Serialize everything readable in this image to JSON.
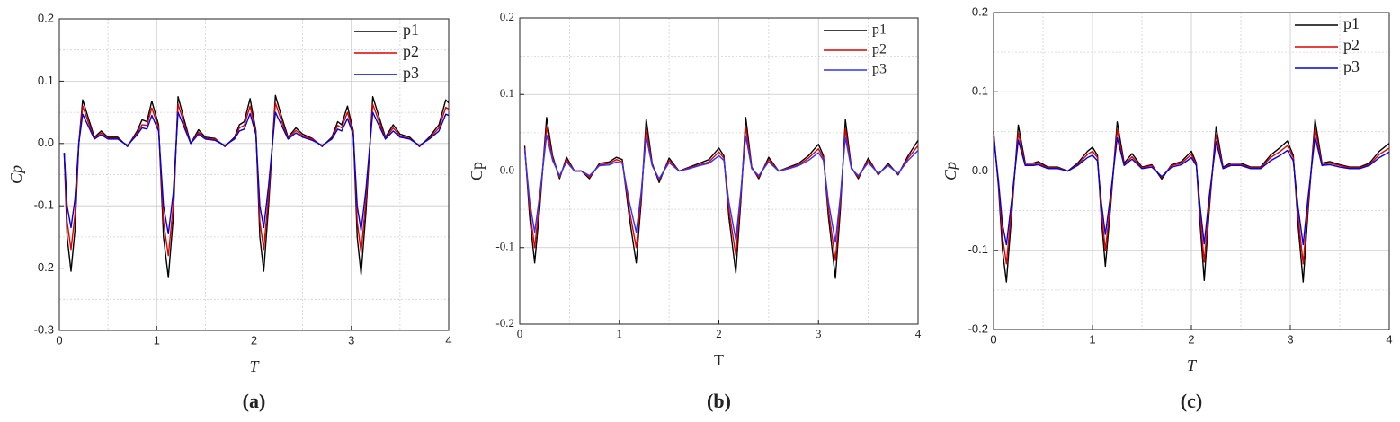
{
  "chart_data": [
    {
      "type": "line",
      "caption": "(a)",
      "xlabel": "T",
      "ylabel": "Cp",
      "italic_labels": true,
      "font": "sans-serif",
      "xlim": [
        0,
        4
      ],
      "xticks": [
        0,
        1,
        2,
        3,
        4
      ],
      "ylim": [
        -0.3,
        0.2
      ],
      "yticks": [
        -0.3,
        -0.2,
        -0.1,
        {
          "value": 0,
          "label": "0.0"
        },
        0.1,
        0.2
      ],
      "grid": true,
      "minor_grid": true,
      "legend": "upper right",
      "x": [
        0.05,
        0.08,
        0.12,
        0.16,
        0.2,
        0.24,
        0.3,
        0.36,
        0.43,
        0.5,
        0.6,
        0.7,
        0.8,
        0.85,
        0.9,
        0.95,
        1.02,
        1.07,
        1.12,
        1.17,
        1.22,
        1.28,
        1.35,
        1.43,
        1.5,
        1.6,
        1.7,
        1.8,
        1.85,
        1.9,
        1.96,
        2.02,
        2.06,
        2.1,
        2.15,
        2.22,
        2.28,
        2.35,
        2.43,
        2.5,
        2.6,
        2.7,
        2.8,
        2.86,
        2.9,
        2.96,
        3.02,
        3.06,
        3.1,
        3.15,
        3.22,
        3.28,
        3.35,
        3.43,
        3.5,
        3.6,
        3.7,
        3.8,
        3.9,
        3.97,
        4.0
      ],
      "series": [
        {
          "name": "p1",
          "color": "#000000",
          "values": [
            -0.015,
            -0.15,
            -0.205,
            -0.14,
            0.0,
            0.07,
            0.04,
            0.01,
            0.02,
            0.01,
            0.01,
            -0.005,
            0.02,
            0.038,
            0.035,
            0.068,
            0.03,
            -0.15,
            -0.215,
            -0.12,
            0.075,
            0.04,
            0.0,
            0.022,
            0.01,
            0.008,
            -0.005,
            0.01,
            0.03,
            0.035,
            0.072,
            0.02,
            -0.15,
            -0.205,
            -0.1,
            0.077,
            0.045,
            0.01,
            0.025,
            0.015,
            0.008,
            -0.005,
            0.01,
            0.035,
            0.03,
            0.06,
            0.02,
            -0.15,
            -0.21,
            -0.11,
            0.075,
            0.045,
            0.01,
            0.03,
            0.015,
            0.01,
            -0.005,
            0.01,
            0.03,
            0.07,
            0.065
          ]
        },
        {
          "name": "p2",
          "color": "#e00000",
          "values": [
            -0.015,
            -0.125,
            -0.17,
            -0.115,
            0.0,
            0.06,
            0.033,
            0.008,
            0.017,
            0.008,
            0.008,
            -0.004,
            0.017,
            0.03,
            0.029,
            0.057,
            0.025,
            -0.125,
            -0.18,
            -0.1,
            0.063,
            0.033,
            0.0,
            0.018,
            0.008,
            0.007,
            -0.004,
            0.008,
            0.025,
            0.029,
            0.06,
            0.017,
            -0.125,
            -0.17,
            -0.083,
            0.065,
            0.037,
            0.008,
            0.021,
            0.012,
            0.007,
            -0.004,
            0.008,
            0.029,
            0.025,
            0.05,
            0.017,
            -0.125,
            -0.175,
            -0.091,
            0.063,
            0.037,
            0.008,
            0.025,
            0.012,
            0.008,
            -0.004,
            0.008,
            0.025,
            0.058,
            0.055
          ]
        },
        {
          "name": "p3",
          "color": "#0000e0",
          "values": [
            -0.015,
            -0.1,
            -0.135,
            -0.09,
            0.0,
            0.047,
            0.027,
            0.007,
            0.014,
            0.007,
            0.007,
            -0.003,
            0.014,
            0.025,
            0.023,
            0.045,
            0.02,
            -0.1,
            -0.145,
            -0.08,
            0.05,
            0.027,
            0.0,
            0.015,
            0.007,
            0.005,
            -0.003,
            0.007,
            0.02,
            0.023,
            0.048,
            0.014,
            -0.1,
            -0.135,
            -0.067,
            0.05,
            0.03,
            0.007,
            0.017,
            0.01,
            0.005,
            -0.003,
            0.007,
            0.023,
            0.02,
            0.04,
            0.014,
            -0.1,
            -0.14,
            -0.074,
            0.05,
            0.03,
            0.007,
            0.02,
            0.01,
            0.007,
            -0.003,
            0.007,
            0.02,
            0.047,
            0.045
          ]
        }
      ]
    },
    {
      "type": "line",
      "caption": "(b)",
      "xlabel": "T",
      "ylabel": "Cp",
      "italic_labels": false,
      "font": "serif",
      "xlim": [
        0,
        4
      ],
      "xticks": [
        0,
        1,
        2,
        3,
        4
      ],
      "ylim": [
        -0.2,
        0.2
      ],
      "yticks": [
        -0.2,
        -0.1,
        {
          "value": 0,
          "label": "0.0"
        },
        0.1,
        0.2
      ],
      "grid": true,
      "minor_grid": true,
      "legend": "upper right",
      "x": [
        0.05,
        0.1,
        0.15,
        0.2,
        0.27,
        0.33,
        0.4,
        0.47,
        0.55,
        0.62,
        0.7,
        0.8,
        0.9,
        0.97,
        1.03,
        1.1,
        1.17,
        1.22,
        1.27,
        1.33,
        1.4,
        1.5,
        1.6,
        1.7,
        1.8,
        1.9,
        2.0,
        2.05,
        2.1,
        2.17,
        2.22,
        2.27,
        2.33,
        2.4,
        2.5,
        2.6,
        2.7,
        2.8,
        2.9,
        3.0,
        3.05,
        3.1,
        3.17,
        3.22,
        3.27,
        3.33,
        3.4,
        3.5,
        3.6,
        3.7,
        3.8,
        3.9,
        4.0
      ],
      "series": [
        {
          "name": "p1",
          "color": "#000000",
          "values": [
            0.033,
            -0.06,
            -0.12,
            -0.05,
            0.07,
            0.02,
            -0.01,
            0.018,
            0.0,
            0.0,
            -0.01,
            0.01,
            0.012,
            0.018,
            0.015,
            -0.06,
            -0.12,
            -0.04,
            0.068,
            0.01,
            -0.015,
            0.017,
            0.0,
            0.005,
            0.01,
            0.015,
            0.03,
            0.02,
            -0.06,
            -0.133,
            -0.04,
            0.07,
            0.005,
            -0.01,
            0.018,
            0.0,
            0.005,
            0.01,
            0.02,
            0.035,
            0.02,
            -0.06,
            -0.14,
            -0.05,
            0.067,
            0.005,
            -0.01,
            0.017,
            -0.005,
            0.01,
            -0.005,
            0.02,
            0.04
          ]
        },
        {
          "name": "p2",
          "color": "#e00000",
          "values": [
            0.03,
            -0.05,
            -0.1,
            -0.04,
            0.058,
            0.017,
            -0.008,
            0.015,
            0.0,
            0.0,
            -0.008,
            0.008,
            0.01,
            0.015,
            0.012,
            -0.05,
            -0.1,
            -0.033,
            0.056,
            0.008,
            -0.012,
            0.014,
            0.0,
            0.004,
            0.008,
            0.012,
            0.025,
            0.017,
            -0.05,
            -0.11,
            -0.033,
            0.058,
            0.004,
            -0.008,
            0.015,
            0.0,
            0.004,
            0.008,
            0.017,
            0.029,
            0.017,
            -0.05,
            -0.117,
            -0.04,
            0.055,
            0.004,
            -0.008,
            0.014,
            -0.004,
            0.008,
            -0.004,
            0.017,
            0.033
          ]
        },
        {
          "name": "p3",
          "color": "#3030ff",
          "values": [
            0.028,
            -0.04,
            -0.08,
            -0.032,
            0.047,
            0.014,
            -0.006,
            0.012,
            0.0,
            0.0,
            -0.006,
            0.007,
            0.008,
            0.012,
            0.01,
            -0.04,
            -0.08,
            -0.027,
            0.045,
            0.007,
            -0.01,
            0.011,
            0.0,
            0.003,
            0.007,
            0.01,
            0.02,
            0.014,
            -0.04,
            -0.09,
            -0.027,
            0.046,
            0.003,
            -0.006,
            0.012,
            0.0,
            0.003,
            0.007,
            0.014,
            0.024,
            0.014,
            -0.04,
            -0.093,
            -0.032,
            0.044,
            0.003,
            -0.006,
            0.011,
            -0.003,
            0.007,
            -0.003,
            0.014,
            0.027
          ]
        }
      ]
    },
    {
      "type": "line",
      "caption": "(c)",
      "xlabel": "T",
      "ylabel": "Cp",
      "italic_labels": true,
      "font": "sans-serif",
      "xlim": [
        0,
        4
      ],
      "xticks": [
        0,
        1,
        2,
        3,
        4
      ],
      "ylim": [
        -0.2,
        0.2
      ],
      "yticks": [
        -0.2,
        -0.1,
        {
          "value": 0,
          "label": "0.0"
        },
        0.1,
        0.2
      ],
      "grid": true,
      "minor_grid": true,
      "legend": "upper right",
      "x": [
        0.0,
        0.05,
        0.09,
        0.13,
        0.18,
        0.25,
        0.32,
        0.4,
        0.45,
        0.55,
        0.65,
        0.75,
        0.85,
        0.95,
        1.0,
        1.05,
        1.09,
        1.13,
        1.18,
        1.25,
        1.32,
        1.4,
        1.5,
        1.6,
        1.7,
        1.8,
        1.9,
        2.0,
        2.05,
        2.09,
        2.13,
        2.18,
        2.25,
        2.32,
        2.4,
        2.5,
        2.6,
        2.7,
        2.8,
        2.9,
        2.97,
        3.03,
        3.08,
        3.13,
        3.18,
        3.25,
        3.32,
        3.4,
        3.5,
        3.6,
        3.7,
        3.8,
        3.9,
        4.0
      ],
      "series": [
        {
          "name": "p1",
          "color": "#000000",
          "values": [
            0.05,
            -0.02,
            -0.1,
            -0.14,
            -0.06,
            0.058,
            0.01,
            0.01,
            0.012,
            0.005,
            0.005,
            0.0,
            0.01,
            0.025,
            0.03,
            0.02,
            -0.06,
            -0.12,
            -0.05,
            0.062,
            0.01,
            0.022,
            0.005,
            0.008,
            -0.01,
            0.008,
            0.012,
            0.025,
            0.01,
            -0.07,
            -0.138,
            -0.05,
            0.056,
            0.005,
            0.01,
            0.01,
            0.005,
            0.005,
            0.02,
            0.03,
            0.038,
            0.02,
            -0.07,
            -0.14,
            -0.05,
            0.065,
            0.01,
            0.012,
            0.008,
            0.005,
            0.005,
            0.01,
            0.025,
            0.035
          ]
        },
        {
          "name": "p2",
          "color": "#e00000",
          "values": [
            0.047,
            -0.017,
            -0.083,
            -0.117,
            -0.05,
            0.048,
            0.008,
            0.008,
            0.01,
            0.004,
            0.004,
            0.0,
            0.008,
            0.021,
            0.025,
            0.017,
            -0.05,
            -0.1,
            -0.042,
            0.052,
            0.008,
            0.018,
            0.004,
            0.007,
            -0.008,
            0.007,
            0.01,
            0.021,
            0.008,
            -0.058,
            -0.115,
            -0.042,
            0.046,
            0.004,
            0.008,
            0.008,
            0.004,
            0.004,
            0.017,
            0.025,
            0.032,
            0.017,
            -0.058,
            -0.117,
            -0.042,
            0.054,
            0.008,
            0.01,
            0.007,
            0.004,
            0.004,
            0.008,
            0.021,
            0.029
          ]
        },
        {
          "name": "p3",
          "color": "#0000e0",
          "values": [
            0.044,
            -0.013,
            -0.067,
            -0.093,
            -0.04,
            0.039,
            0.007,
            0.007,
            0.008,
            0.003,
            0.003,
            0.0,
            0.007,
            0.017,
            0.02,
            0.013,
            -0.04,
            -0.08,
            -0.033,
            0.042,
            0.007,
            0.015,
            0.003,
            0.005,
            -0.007,
            0.005,
            0.008,
            0.017,
            0.007,
            -0.047,
            -0.092,
            -0.033,
            0.037,
            0.003,
            0.007,
            0.007,
            0.003,
            0.003,
            0.013,
            0.02,
            0.026,
            0.013,
            -0.047,
            -0.093,
            -0.033,
            0.043,
            0.007,
            0.008,
            0.005,
            0.003,
            0.003,
            0.007,
            0.017,
            0.024
          ]
        }
      ]
    }
  ]
}
